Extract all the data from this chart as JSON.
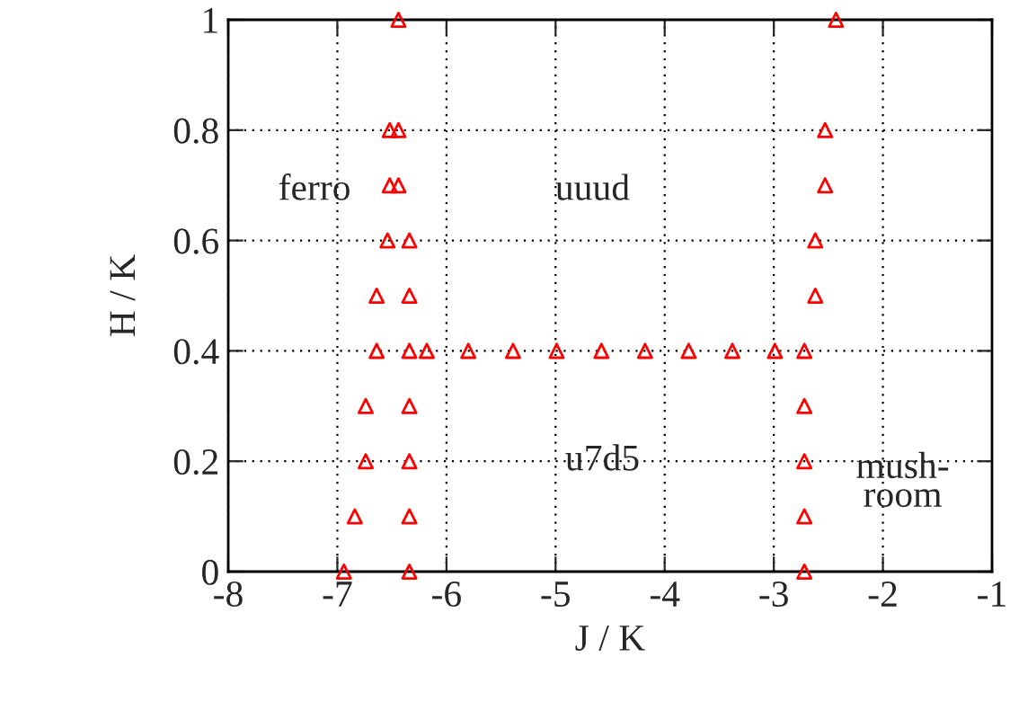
{
  "chart_data": {
    "type": "scatter",
    "xlabel": "J / K",
    "ylabel": "H / K",
    "x": [
      -6.44,
      -6.52,
      -6.44,
      -6.52,
      -6.44,
      -6.54,
      -6.34,
      -6.64,
      -6.34,
      -6.64,
      -6.34,
      -6.18,
      -5.8,
      -6.74,
      -6.34,
      -6.74,
      -6.34,
      -6.84,
      -6.34,
      -6.94,
      -6.34,
      -5.39,
      -4.99,
      -4.58,
      -4.18,
      -3.78,
      -3.38,
      -2.99,
      -2.43,
      -2.53,
      -2.53,
      -2.62,
      -2.62,
      -2.72,
      -2.72,
      -2.72,
      -2.72,
      -2.72
    ],
    "series": [
      {
        "color": "#ff0000",
        "values": [
          1,
          0.8,
          0.8,
          0.7,
          0.7,
          0.6,
          0.6,
          0.5,
          0.5,
          0.4,
          0.4,
          0.4,
          0.4,
          0.3,
          0.3,
          0.2,
          0.2,
          0.1,
          0.1,
          0,
          0,
          0.4,
          0.4,
          0.4,
          0.4,
          0.4,
          0.4,
          0.4,
          1,
          0.8,
          0.7,
          0.6,
          0.5,
          0.4,
          0.3,
          0.2,
          0.1,
          0
        ]
      }
    ],
    "marker": "triangle",
    "xlim": [
      -8,
      -1
    ],
    "xticks": [
      -8,
      -7,
      -6,
      -5,
      -4,
      -3,
      -2,
      -1
    ],
    "ylim": [
      0,
      1
    ],
    "yticks": [
      0,
      0.2,
      0.4,
      0.6,
      0.8,
      1
    ],
    "grid": true,
    "annotations": [
      "ferro",
      "uuud",
      "u7d5",
      "mush-\nroom"
    ]
  }
}
